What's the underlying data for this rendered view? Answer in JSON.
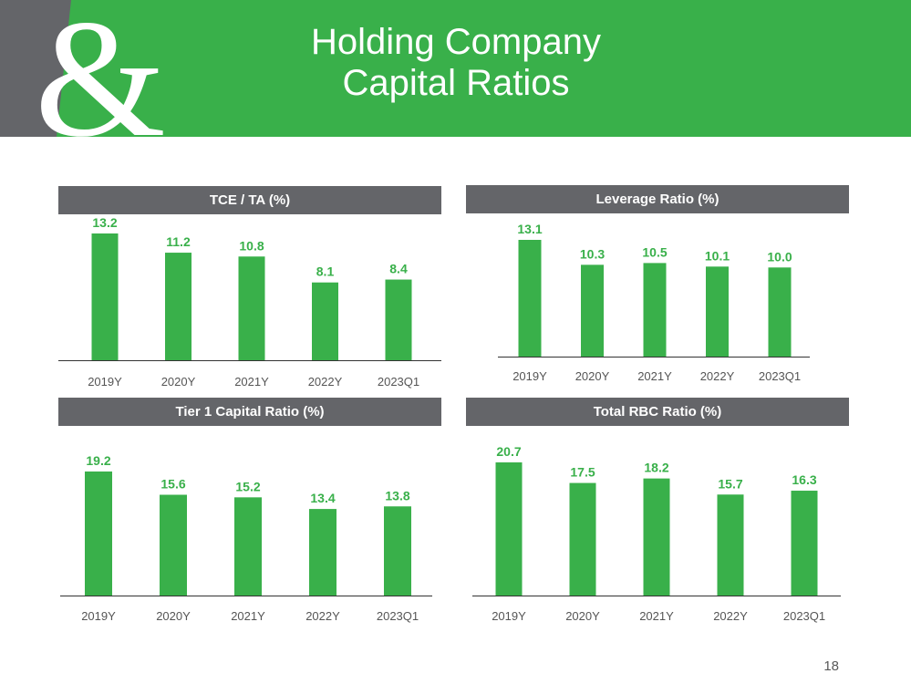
{
  "header": {
    "title_line1": "Holding Company",
    "title_line2": "Capital Ratios",
    "band_color": "#39b04a",
    "logo_icon": "ampersand-logo-icon",
    "logo_glyph": "&"
  },
  "page_number": "18",
  "colors": {
    "bar": "#39b04a",
    "panel_header": "#646569",
    "axis": "#333333"
  },
  "chart_data": [
    {
      "type": "bar",
      "title": "TCE / TA (%)",
      "categories": [
        "2019Y",
        "2020Y",
        "2021Y",
        "2022Y",
        "2023Q1"
      ],
      "values": [
        13.2,
        11.2,
        10.8,
        8.1,
        8.4
      ],
      "value_labels": [
        "13.2",
        "11.2",
        "10.8",
        "8.1",
        "8.4"
      ],
      "ylim": [
        0,
        13.2
      ],
      "legend": "none",
      "grid": false
    },
    {
      "type": "bar",
      "title": "Leverage Ratio (%)",
      "categories": [
        "2019Y",
        "2020Y",
        "2021Y",
        "2022Y",
        "2023Q1"
      ],
      "values": [
        13.1,
        10.3,
        10.5,
        10.1,
        10.0
      ],
      "value_labels": [
        "13.1",
        "10.3",
        "10.5",
        "10.1",
        "10.0"
      ],
      "ylim": [
        0,
        13.1
      ],
      "legend": "none",
      "grid": false
    },
    {
      "type": "bar",
      "title": "Tier 1 Capital Ratio (%)",
      "categories": [
        "2019Y",
        "2020Y",
        "2021Y",
        "2022Y",
        "2023Q1"
      ],
      "values": [
        19.2,
        15.6,
        15.2,
        13.4,
        13.8
      ],
      "value_labels": [
        "19.2",
        "15.6",
        "15.2",
        "13.4",
        "13.8"
      ],
      "ylim": [
        0,
        19.2
      ],
      "legend": "none",
      "grid": false
    },
    {
      "type": "bar",
      "title": "Total RBC Ratio (%)",
      "categories": [
        "2019Y",
        "2020Y",
        "2021Y",
        "2022Y",
        "2023Q1"
      ],
      "values": [
        20.7,
        17.5,
        18.2,
        15.7,
        16.3
      ],
      "value_labels": [
        "20.7",
        "17.5",
        "18.2",
        "15.7",
        "16.3"
      ],
      "ylim": [
        0,
        20.7
      ],
      "legend": "none",
      "grid": false
    }
  ]
}
